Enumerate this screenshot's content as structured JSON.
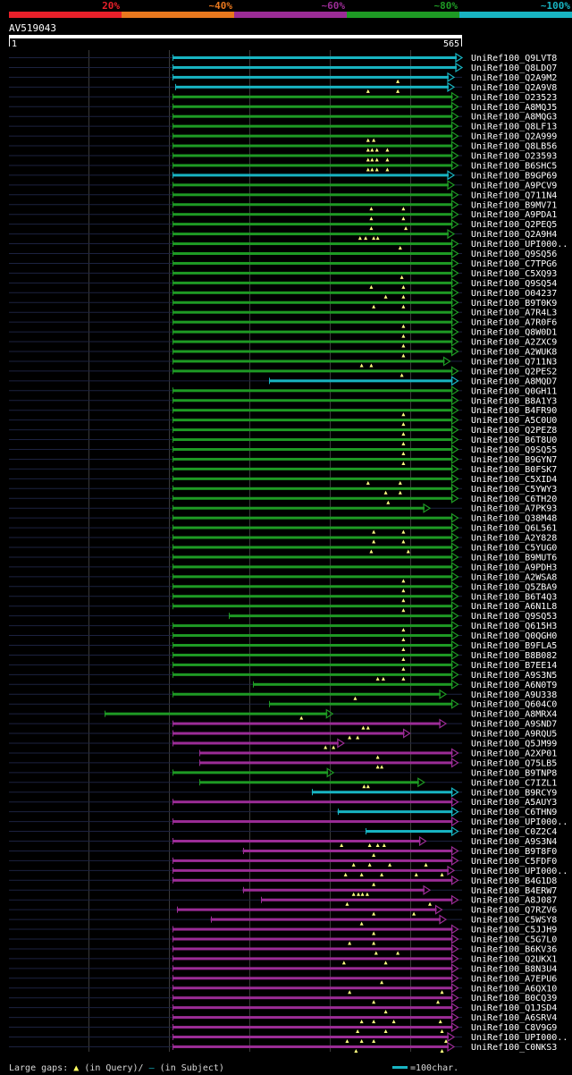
{
  "chart_data": {
    "type": "alignment-overview",
    "query_name": "AV519043",
    "query_start": "1",
    "query_end": "565",
    "query_length": 565,
    "identity_scale": [
      {
        "label": "20%",
        "color": "#e8202a"
      },
      {
        "label": "~40%",
        "color": "#e8781e"
      },
      {
        "label": "~60%",
        "color": "#9b2c96"
      },
      {
        "label": "~80%",
        "color": "#1e9a24"
      },
      {
        "label": "~100%",
        "color": "#18b4c2"
      }
    ],
    "row_colors": {
      "cyan": "#18b4c2",
      "green": "#1e9a24",
      "purple": "#9b2c96"
    },
    "hits": [
      {
        "name": "UniRef100_Q9LVT8",
        "color": "cyan",
        "start": 205,
        "end": 565,
        "marks": []
      },
      {
        "name": "UniRef100_Q8LDQ7",
        "color": "cyan",
        "start": 205,
        "end": 565,
        "marks": []
      },
      {
        "name": "UniRef100_Q2A9M2",
        "color": "cyan",
        "start": 205,
        "end": 555,
        "marks": [
          485
        ]
      },
      {
        "name": "UniRef100_Q2A9V8",
        "color": "cyan",
        "start": 208,
        "end": 555,
        "marks": [
          448,
          485
        ]
      },
      {
        "name": "UniRef100_O23523",
        "color": "green",
        "start": 205,
        "end": 560,
        "marks": []
      },
      {
        "name": "UniRef100_A8MQJ5",
        "color": "green",
        "start": 205,
        "end": 560,
        "marks": []
      },
      {
        "name": "UniRef100_A8MQG3",
        "color": "green",
        "start": 205,
        "end": 560,
        "marks": []
      },
      {
        "name": "UniRef100_Q8LF13",
        "color": "green",
        "start": 205,
        "end": 560,
        "marks": []
      },
      {
        "name": "UniRef100_Q2A999",
        "color": "green",
        "start": 205,
        "end": 560,
        "marks": [
          448,
          455
        ]
      },
      {
        "name": "UniRef100_Q8LB56",
        "color": "green",
        "start": 205,
        "end": 560,
        "marks": [
          448,
          453,
          459,
          472
        ]
      },
      {
        "name": "UniRef100_O23593",
        "color": "green",
        "start": 205,
        "end": 560,
        "marks": [
          448,
          453,
          459,
          472
        ]
      },
      {
        "name": "UniRef100_B6SHC5",
        "color": "green",
        "start": 205,
        "end": 560,
        "marks": [
          448,
          453,
          459,
          472
        ]
      },
      {
        "name": "UniRef100_B9GP69",
        "color": "cyan",
        "start": 205,
        "end": 555,
        "marks": []
      },
      {
        "name": "UniRef100_A9PCV9",
        "color": "green",
        "start": 205,
        "end": 555,
        "marks": []
      },
      {
        "name": "UniRef100_Q711N4",
        "color": "green",
        "start": 205,
        "end": 560,
        "marks": []
      },
      {
        "name": "UniRef100_B9MV71",
        "color": "green",
        "start": 205,
        "end": 560,
        "marks": [
          452,
          492
        ]
      },
      {
        "name": "UniRef100_A9PDA1",
        "color": "green",
        "start": 205,
        "end": 560,
        "marks": [
          452,
          492
        ]
      },
      {
        "name": "UniRef100_Q2PEQ5",
        "color": "green",
        "start": 205,
        "end": 560,
        "marks": [
          452,
          495
        ]
      },
      {
        "name": "UniRef100_Q2A9H4",
        "color": "green",
        "start": 205,
        "end": 555,
        "marks": [
          438,
          445,
          455,
          460
        ]
      },
      {
        "name": "UniRef100_UPI000..",
        "color": "green",
        "start": 205,
        "end": 560,
        "marks": [
          488
        ]
      },
      {
        "name": "UniRef100_Q9SQ56",
        "color": "green",
        "start": 205,
        "end": 560,
        "marks": []
      },
      {
        "name": "UniRef100_C7TPG6",
        "color": "green",
        "start": 205,
        "end": 560,
        "marks": []
      },
      {
        "name": "UniRef100_C5XQ93",
        "color": "green",
        "start": 205,
        "end": 560,
        "marks": [
          490
        ]
      },
      {
        "name": "UniRef100_Q9SQ54",
        "color": "green",
        "start": 205,
        "end": 560,
        "marks": [
          452,
          492
        ]
      },
      {
        "name": "UniRef100_O04237",
        "color": "green",
        "start": 205,
        "end": 560,
        "marks": [
          470,
          492
        ]
      },
      {
        "name": "UniRef100_B9T0K9",
        "color": "green",
        "start": 205,
        "end": 560,
        "marks": [
          455,
          492
        ]
      },
      {
        "name": "UniRef100_A7R4L3",
        "color": "green",
        "start": 205,
        "end": 560,
        "marks": []
      },
      {
        "name": "UniRef100_A7R0F6",
        "color": "green",
        "start": 205,
        "end": 560,
        "marks": [
          492
        ]
      },
      {
        "name": "UniRef100_Q8W0D1",
        "color": "green",
        "start": 205,
        "end": 560,
        "marks": [
          492
        ]
      },
      {
        "name": "UniRef100_A2ZXC9",
        "color": "green",
        "start": 205,
        "end": 560,
        "marks": [
          492
        ]
      },
      {
        "name": "UniRef100_A2WUK8",
        "color": "green",
        "start": 205,
        "end": 560,
        "marks": [
          492
        ]
      },
      {
        "name": "UniRef100_Q711N3",
        "color": "green",
        "start": 205,
        "end": 550,
        "marks": [
          440,
          452
        ]
      },
      {
        "name": "UniRef100_Q2PES2",
        "color": "green",
        "start": 205,
        "end": 560,
        "marks": [
          490
        ]
      },
      {
        "name": "UniRef100_A8MQD7",
        "color": "cyan",
        "start": 325,
        "end": 560,
        "marks": []
      },
      {
        "name": "UniRef100_Q0GH11",
        "color": "green",
        "start": 205,
        "end": 560,
        "marks": []
      },
      {
        "name": "UniRef100_B8A1Y3",
        "color": "green",
        "start": 205,
        "end": 560,
        "marks": []
      },
      {
        "name": "UniRef100_B4FR90",
        "color": "green",
        "start": 205,
        "end": 560,
        "marks": [
          492
        ]
      },
      {
        "name": "UniRef100_A5C0U0",
        "color": "green",
        "start": 205,
        "end": 560,
        "marks": [
          492
        ]
      },
      {
        "name": "UniRef100_Q2PEZ8",
        "color": "green",
        "start": 205,
        "end": 560,
        "marks": [
          492
        ]
      },
      {
        "name": "UniRef100_B6T8U0",
        "color": "green",
        "start": 205,
        "end": 560,
        "marks": [
          492
        ]
      },
      {
        "name": "UniRef100_Q9SQ55",
        "color": "green",
        "start": 205,
        "end": 560,
        "marks": [
          492
        ]
      },
      {
        "name": "UniRef100_B9GYN7",
        "color": "green",
        "start": 205,
        "end": 560,
        "marks": [
          492
        ]
      },
      {
        "name": "UniRef100_B0FSK7",
        "color": "green",
        "start": 205,
        "end": 560,
        "marks": []
      },
      {
        "name": "UniRef100_C5XID4",
        "color": "green",
        "start": 205,
        "end": 560,
        "marks": [
          448,
          488
        ]
      },
      {
        "name": "UniRef100_C5YWY3",
        "color": "green",
        "start": 205,
        "end": 560,
        "marks": [
          470,
          488
        ]
      },
      {
        "name": "UniRef100_C6TH20",
        "color": "green",
        "start": 205,
        "end": 560,
        "marks": [
          473
        ]
      },
      {
        "name": "UniRef100_A7PK93",
        "color": "green",
        "start": 205,
        "end": 525,
        "marks": []
      },
      {
        "name": "UniRef100_Q38M48",
        "color": "green",
        "start": 205,
        "end": 560,
        "marks": []
      },
      {
        "name": "UniRef100_Q6L561",
        "color": "green",
        "start": 205,
        "end": 560,
        "marks": [
          455,
          492
        ]
      },
      {
        "name": "UniRef100_A2Y828",
        "color": "green",
        "start": 205,
        "end": 560,
        "marks": [
          455,
          492
        ]
      },
      {
        "name": "UniRef100_C5YUG0",
        "color": "green",
        "start": 205,
        "end": 560,
        "marks": [
          452,
          498
        ]
      },
      {
        "name": "UniRef100_B9MUT6",
        "color": "green",
        "start": 205,
        "end": 560,
        "marks": []
      },
      {
        "name": "UniRef100_A9PDH3",
        "color": "green",
        "start": 205,
        "end": 560,
        "marks": []
      },
      {
        "name": "UniRef100_A2WSA8",
        "color": "green",
        "start": 205,
        "end": 560,
        "marks": [
          492
        ]
      },
      {
        "name": "UniRef100_Q5ZBA9",
        "color": "green",
        "start": 205,
        "end": 560,
        "marks": [
          492
        ]
      },
      {
        "name": "UniRef100_B6T4Q3",
        "color": "green",
        "start": 205,
        "end": 560,
        "marks": [
          492
        ]
      },
      {
        "name": "UniRef100_A6N1L8",
        "color": "green",
        "start": 205,
        "end": 560,
        "marks": [
          492
        ]
      },
      {
        "name": "UniRef100_Q9SQ53",
        "color": "green",
        "start": 275,
        "end": 560,
        "marks": []
      },
      {
        "name": "UniRef100_Q615H3",
        "color": "green",
        "start": 205,
        "end": 560,
        "marks": [
          492
        ]
      },
      {
        "name": "UniRef100_Q0QGH0",
        "color": "green",
        "start": 205,
        "end": 560,
        "marks": [
          492
        ]
      },
      {
        "name": "UniRef100_B9FLA5",
        "color": "green",
        "start": 205,
        "end": 560,
        "marks": [
          492
        ]
      },
      {
        "name": "UniRef100_B8B082",
        "color": "green",
        "start": 205,
        "end": 560,
        "marks": [
          492
        ]
      },
      {
        "name": "UniRef100_B7EE14",
        "color": "green",
        "start": 205,
        "end": 560,
        "marks": [
          492
        ]
      },
      {
        "name": "UniRef100_A9S3N5",
        "color": "green",
        "start": 205,
        "end": 560,
        "marks": [
          460,
          467,
          492
        ]
      },
      {
        "name": "UniRef100_A6N0T9",
        "color": "green",
        "start": 305,
        "end": 560,
        "marks": []
      },
      {
        "name": "UniRef100_A9U338",
        "color": "green",
        "start": 205,
        "end": 545,
        "marks": [
          432
        ]
      },
      {
        "name": "UniRef100_Q604C0",
        "color": "green",
        "start": 325,
        "end": 560,
        "marks": []
      },
      {
        "name": "UniRef100_A8MRX4",
        "color": "green",
        "start": 120,
        "end": 404,
        "marks": [
          365
        ]
      },
      {
        "name": "UniRef100_A9SND7",
        "color": "purple",
        "start": 205,
        "end": 545,
        "marks": [
          442,
          448
        ]
      },
      {
        "name": "UniRef100_A9RQU5",
        "color": "purple",
        "start": 205,
        "end": 500,
        "marks": [
          425,
          435
        ]
      },
      {
        "name": "UniRef100_Q5JM99",
        "color": "purple",
        "start": 205,
        "end": 418,
        "marks": [
          395,
          405
        ]
      },
      {
        "name": "UniRef100_A2XP01",
        "color": "purple",
        "start": 238,
        "end": 560,
        "marks": [
          460
        ]
      },
      {
        "name": "UniRef100_Q75LB5",
        "color": "purple",
        "start": 238,
        "end": 560,
        "marks": [
          460,
          465
        ]
      },
      {
        "name": "UniRef100_B9TNP8",
        "color": "green",
        "start": 205,
        "end": 405,
        "marks": []
      },
      {
        "name": "UniRef100_C7IZL1",
        "color": "green",
        "start": 238,
        "end": 518,
        "marks": [
          443,
          448
        ]
      },
      {
        "name": "UniRef100_B9RCY9",
        "color": "cyan",
        "start": 378,
        "end": 560,
        "marks": []
      },
      {
        "name": "UniRef100_A5AUY3",
        "color": "purple",
        "start": 205,
        "end": 560,
        "marks": []
      },
      {
        "name": "UniRef100_C6THN9",
        "color": "cyan",
        "start": 410,
        "end": 560,
        "marks": []
      },
      {
        "name": "UniRef100_UPI000..",
        "color": "purple",
        "start": 205,
        "end": 560,
        "marks": []
      },
      {
        "name": "UniRef100_C0Z2C4",
        "color": "cyan",
        "start": 445,
        "end": 560,
        "marks": []
      },
      {
        "name": "UniRef100_A9S3N4",
        "color": "purple",
        "start": 205,
        "end": 520,
        "marks": [
          415,
          450,
          460,
          468
        ]
      },
      {
        "name": "UniRef100_B9T8F0",
        "color": "purple",
        "start": 292,
        "end": 560,
        "marks": [
          455
        ]
      },
      {
        "name": "UniRef100_C5FDF0",
        "color": "purple",
        "start": 205,
        "end": 560,
        "marks": [
          430,
          450,
          475,
          520
        ]
      },
      {
        "name": "UniRef100_UPI000..",
        "color": "purple",
        "start": 205,
        "end": 555,
        "marks": [
          420,
          440,
          465,
          508,
          540
        ]
      },
      {
        "name": "UniRef100_B4G1D8",
        "color": "purple",
        "start": 205,
        "end": 560,
        "marks": [
          455
        ]
      },
      {
        "name": "UniRef100_B4ERW7",
        "color": "purple",
        "start": 292,
        "end": 525,
        "marks": [
          430,
          436,
          441,
          447
        ]
      },
      {
        "name": "UniRef100_A8J087",
        "color": "purple",
        "start": 315,
        "end": 560,
        "marks": [
          422,
          525
        ]
      },
      {
        "name": "UniRef100_Q7RZV6",
        "color": "purple",
        "start": 210,
        "end": 540,
        "marks": [
          455,
          505
        ]
      },
      {
        "name": "UniRef100_C5WSY8",
        "color": "purple",
        "start": 252,
        "end": 545,
        "marks": [
          440
        ]
      },
      {
        "name": "UniRef100_C5JJH9",
        "color": "purple",
        "start": 205,
        "end": 560,
        "marks": [
          455
        ]
      },
      {
        "name": "UniRef100_C5G7L0",
        "color": "purple",
        "start": 205,
        "end": 560,
        "marks": [
          425,
          455
        ]
      },
      {
        "name": "UniRef100_B6KV36",
        "color": "purple",
        "start": 205,
        "end": 560,
        "marks": [
          458,
          485
        ]
      },
      {
        "name": "UniRef100_Q2UKX1",
        "color": "purple",
        "start": 205,
        "end": 560,
        "marks": [
          418,
          470
        ]
      },
      {
        "name": "UniRef100_B8N3U4",
        "color": "purple",
        "start": 205,
        "end": 560,
        "marks": []
      },
      {
        "name": "UniRef100_A7EPU6",
        "color": "purple",
        "start": 205,
        "end": 560,
        "marks": [
          465
        ]
      },
      {
        "name": "UniRef100_A6QX10",
        "color": "purple",
        "start": 205,
        "end": 560,
        "marks": [
          425,
          540
        ]
      },
      {
        "name": "UniRef100_B0CQ39",
        "color": "purple",
        "start": 205,
        "end": 560,
        "marks": [
          455,
          535
        ]
      },
      {
        "name": "UniRef100_Q1JSD4",
        "color": "purple",
        "start": 205,
        "end": 560,
        "marks": [
          470
        ]
      },
      {
        "name": "UniRef100_A6SRV4",
        "color": "purple",
        "start": 205,
        "end": 560,
        "marks": [
          440,
          455,
          480,
          538
        ]
      },
      {
        "name": "UniRef100_C8V9G9",
        "color": "purple",
        "start": 205,
        "end": 560,
        "marks": [
          435,
          470,
          540
        ]
      },
      {
        "name": "UniRef100_UPI000..",
        "color": "purple",
        "start": 205,
        "end": 555,
        "marks": [
          422,
          440,
          455,
          545
        ]
      },
      {
        "name": "UniRef100_C0NKS3",
        "color": "purple",
        "start": 205,
        "end": 555,
        "marks": [
          433,
          540
        ]
      }
    ],
    "footer": {
      "gaps_label": "Large gaps:",
      "query_marker": "▲",
      "query_label": "(in Query)/",
      "subject_marker": "—",
      "subject_label": " (in Subject)",
      "scale_label": "=100char."
    }
  }
}
